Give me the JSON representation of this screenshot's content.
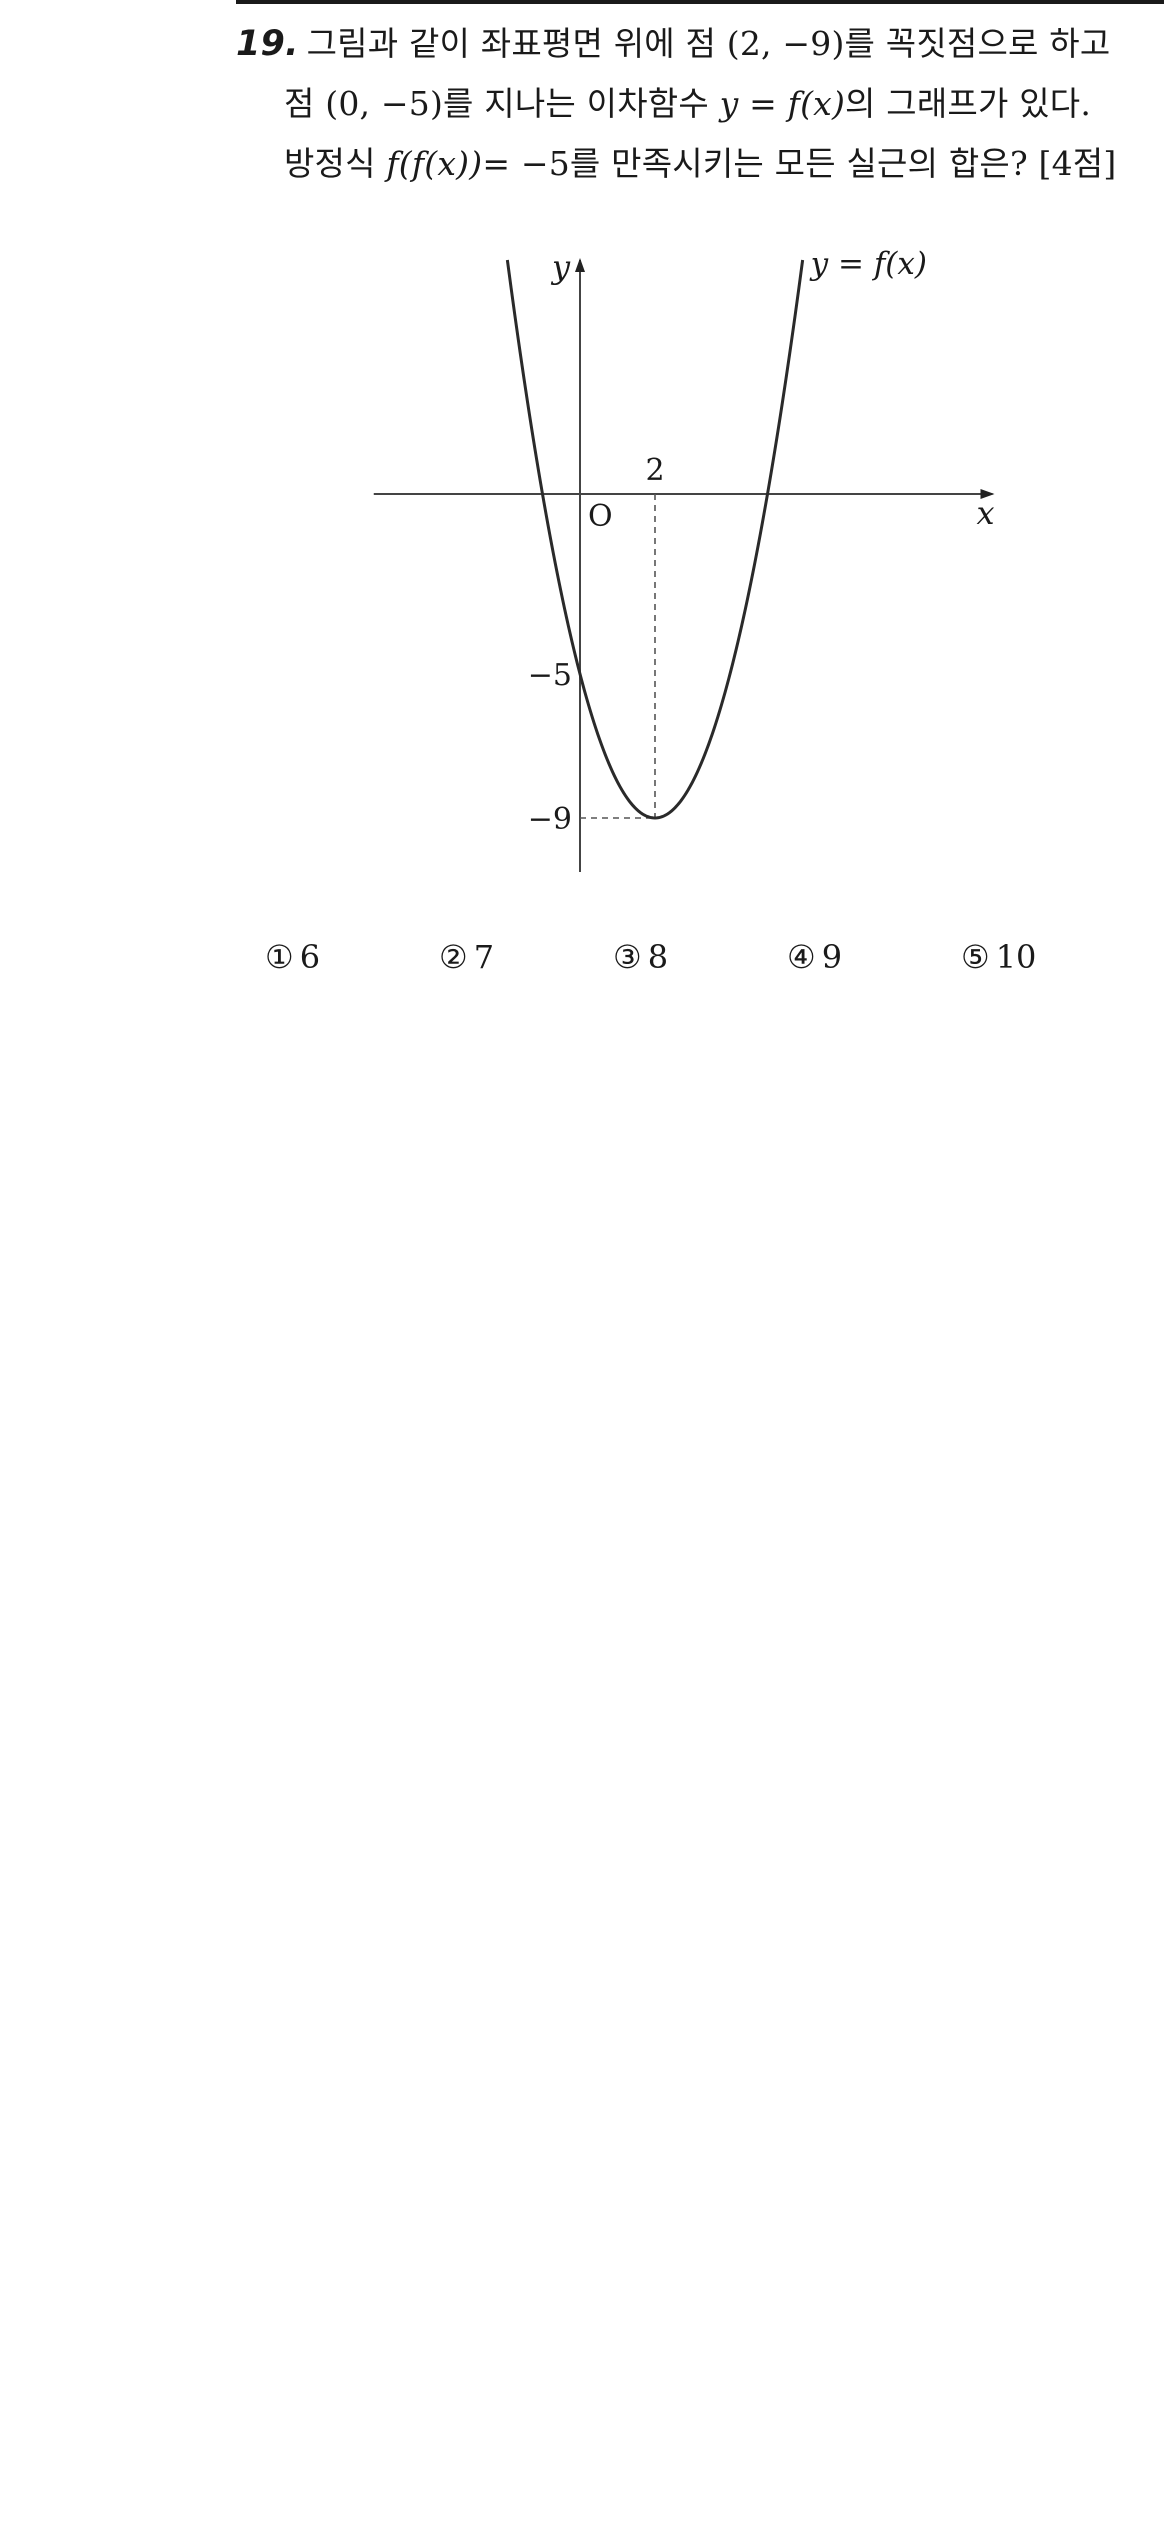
{
  "question": {
    "number": "19.",
    "line1": "그림과 같이 좌표평면 위에 점 (2, −9)를 꼭짓점으로 하고",
    "line2_a": "점 (0, −5)를 지나는 이차함수 ",
    "line2_math": "y = f(x)",
    "line2_b": "의 그래프가 있다.",
    "line3_a": "방정식 ",
    "line3_math": "f(f(x))",
    "line3_b": "= −5를 만족시키는 모든 실근의 합은? [4점]"
  },
  "graph": {
    "curve_label": "y = f(x)",
    "x_axis_label": "x",
    "y_axis_label": "y",
    "origin_label": "O",
    "x_tick_label": "2",
    "y_tick_labels": [
      "−5",
      "−9"
    ]
  },
  "chart_data": {
    "type": "line",
    "function": "f(x) = (x - 2)^2 - 9",
    "vertex": [
      2,
      -9
    ],
    "y_intercept": [
      0,
      -5
    ],
    "marked_points": [
      {
        "x": 2,
        "y": -9
      },
      {
        "x": 0,
        "y": -5
      }
    ],
    "x_ticks": [
      2
    ],
    "y_ticks": [
      -5,
      -9
    ],
    "xlabel": "x",
    "ylabel": "y",
    "xlim": [
      -5.5,
      11
    ],
    "ylim": [
      -10.5,
      6.5
    ],
    "grid": false
  },
  "choices": [
    {
      "mark": "①",
      "value": "6"
    },
    {
      "mark": "②",
      "value": "7"
    },
    {
      "mark": "③",
      "value": "8"
    },
    {
      "mark": "④",
      "value": "9"
    },
    {
      "mark": "⑤",
      "value": "10"
    }
  ]
}
